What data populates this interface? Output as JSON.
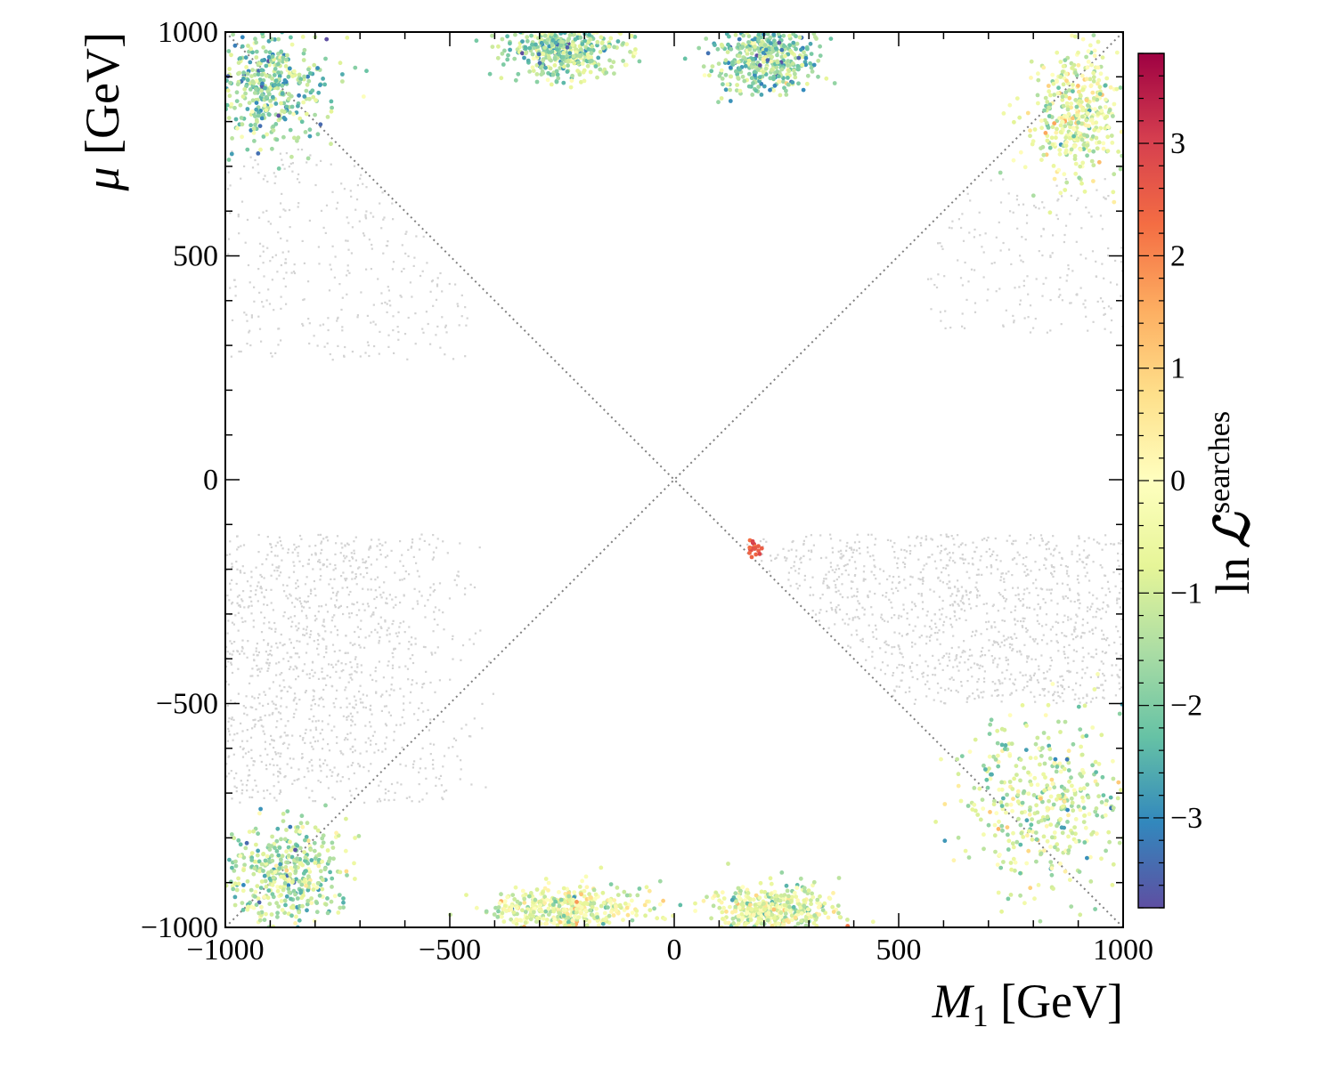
{
  "chart_data": {
    "type": "scatter",
    "title": "",
    "xlabel": {
      "main": "M",
      "sub": "1",
      "unit": " [GeV]"
    },
    "ylabel": {
      "main": "μ",
      "unit": " [GeV]"
    },
    "xlim": [
      -1000,
      1000
    ],
    "ylim": [
      -1000,
      1000
    ],
    "xticks": [
      {
        "value": -1000,
        "label": "−1000"
      },
      {
        "value": -500,
        "label": "−500"
      },
      {
        "value": 0,
        "label": "0"
      },
      {
        "value": 500,
        "label": "500"
      },
      {
        "value": 1000,
        "label": "1000"
      }
    ],
    "yticks": [
      {
        "value": -1000,
        "label": "−1000"
      },
      {
        "value": -500,
        "label": "−500"
      },
      {
        "value": 0,
        "label": "0"
      },
      {
        "value": 500,
        "label": "500"
      },
      {
        "value": 1000,
        "label": "1000"
      }
    ],
    "reference_lines": [
      {
        "name": "diagonal-mu-equals-m1",
        "from": [
          -1000,
          -1000
        ],
        "to": [
          1000,
          1000
        ],
        "style": "dotted",
        "color": "#808080"
      },
      {
        "name": "diagonal-mu-equals-minus-m1",
        "from": [
          -1000,
          1000
        ],
        "to": [
          1000,
          -1000
        ],
        "style": "dotted",
        "color": "#808080"
      }
    ],
    "excluded_color": "#d3d3d3",
    "excluded_regions": [
      {
        "name": "lower-left-band",
        "x": [
          -1000,
          -380
        ],
        "y": [
          -720,
          -120
        ],
        "density": 1.0
      },
      {
        "name": "lower-right-band",
        "x": [
          150,
          1000
        ],
        "y": [
          -500,
          -120
        ],
        "density": 1.0
      },
      {
        "name": "upper-left-band",
        "x": [
          -1000,
          -420
        ],
        "y": [
          270,
          740
        ],
        "density": 0.35
      },
      {
        "name": "upper-right-band",
        "x": [
          560,
          1000
        ],
        "y": [
          330,
          680
        ],
        "density": 0.3
      }
    ],
    "colored_clusters": [
      {
        "name": "upper-left-corner",
        "center": [
          -900,
          880
        ],
        "spread": [
          110,
          110
        ],
        "mean_lnL": -1.8
      },
      {
        "name": "upper-center-left",
        "center": [
          -240,
          960
        ],
        "spread": [
          110,
          50
        ],
        "mean_lnL": -1.6
      },
      {
        "name": "upper-center-right",
        "center": [
          200,
          940
        ],
        "spread": [
          100,
          60
        ],
        "mean_lnL": -1.7
      },
      {
        "name": "upper-right-corner",
        "center": [
          900,
          820
        ],
        "spread": [
          90,
          120
        ],
        "mean_lnL": -0.6
      },
      {
        "name": "lower-left-corner",
        "center": [
          -870,
          -880
        ],
        "spread": [
          120,
          100
        ],
        "mean_lnL": -1.3
      },
      {
        "name": "lower-center-left",
        "center": [
          -240,
          -960
        ],
        "spread": [
          130,
          45
        ],
        "mean_lnL": -0.5
      },
      {
        "name": "lower-center-right",
        "center": [
          220,
          -960
        ],
        "spread": [
          120,
          45
        ],
        "mean_lnL": -0.6
      },
      {
        "name": "lower-right-wedge",
        "center": [
          820,
          -720
        ],
        "spread": [
          150,
          170
        ],
        "mean_lnL": -0.9
      },
      {
        "name": "near-origin-hotspot",
        "center": [
          180,
          -155
        ],
        "spread": [
          15,
          15
        ],
        "mean_lnL": 2.6
      }
    ],
    "colorbar": {
      "label": "ln ℒ",
      "label_ln": "ln",
      "label_script": "ℒ",
      "label_superscript": "searches",
      "range": [
        -3.8,
        3.8
      ],
      "ticks": [
        {
          "value": -3,
          "label": "−3"
        },
        {
          "value": -2,
          "label": "−2"
        },
        {
          "value": -1,
          "label": "−1"
        },
        {
          "value": 0,
          "label": "0"
        },
        {
          "value": 1,
          "label": "1"
        },
        {
          "value": 2,
          "label": "2"
        },
        {
          "value": 3,
          "label": "3"
        }
      ],
      "colormap": "Spectral_r",
      "colormap_stops": [
        "#5e4fa2",
        "#3288bd",
        "#66c2a5",
        "#abdda4",
        "#e6f598",
        "#ffffbf",
        "#fee08b",
        "#fdae61",
        "#f46d43",
        "#d53e4f",
        "#9e0142"
      ]
    }
  }
}
